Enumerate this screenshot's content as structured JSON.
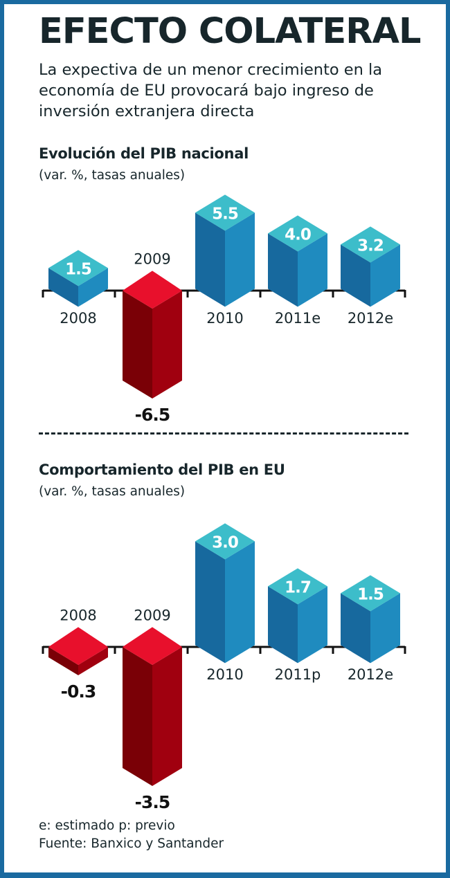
{
  "header": {
    "title": "EFECTO COLATERAL",
    "subtitle": "La expectiva de un menor crecimiento en la economía de EU provocará bajo ingreso de inversión extranjera directa"
  },
  "colors": {
    "frame": "#1a6aa0",
    "positive_top": "#3dbdca",
    "positive_left": "#17699e",
    "positive_right": "#1f8bbf",
    "negative_top": "#e8102c",
    "negative_left": "#7a0006",
    "negative_right": "#a0000f",
    "text": "#17262b"
  },
  "chart_data": [
    {
      "type": "bar",
      "title": "Evolución del PIB nacional",
      "subtitle": "(var. %, tasas anuales)",
      "categories": [
        "2008",
        "2009",
        "2010",
        "2011e",
        "2012e"
      ],
      "values": [
        1.5,
        -6.5,
        5.5,
        4.0,
        3.2
      ],
      "value_labels": [
        "1.5",
        "-6.5",
        "5.5",
        "4.0",
        "3.2"
      ],
      "xlabel": "",
      "ylabel": "var. %",
      "grid": false,
      "style": "3d-isometric"
    },
    {
      "type": "bar",
      "title": "Comportamiento del PIB en EU",
      "subtitle": "(var. %, tasas anuales)",
      "categories": [
        "2008",
        "2009",
        "2010",
        "2011p",
        "2012e"
      ],
      "values": [
        -0.3,
        -3.5,
        3.0,
        1.7,
        1.5
      ],
      "value_labels": [
        "-0.3",
        "-3.5",
        "3.0",
        "1.7",
        "1.5"
      ],
      "xlabel": "",
      "ylabel": "var. %",
      "grid": false,
      "style": "3d-isometric"
    }
  ],
  "footer": {
    "legend": "e: estimado    p: previo",
    "source": "Fuente: Banxico y Santander"
  }
}
